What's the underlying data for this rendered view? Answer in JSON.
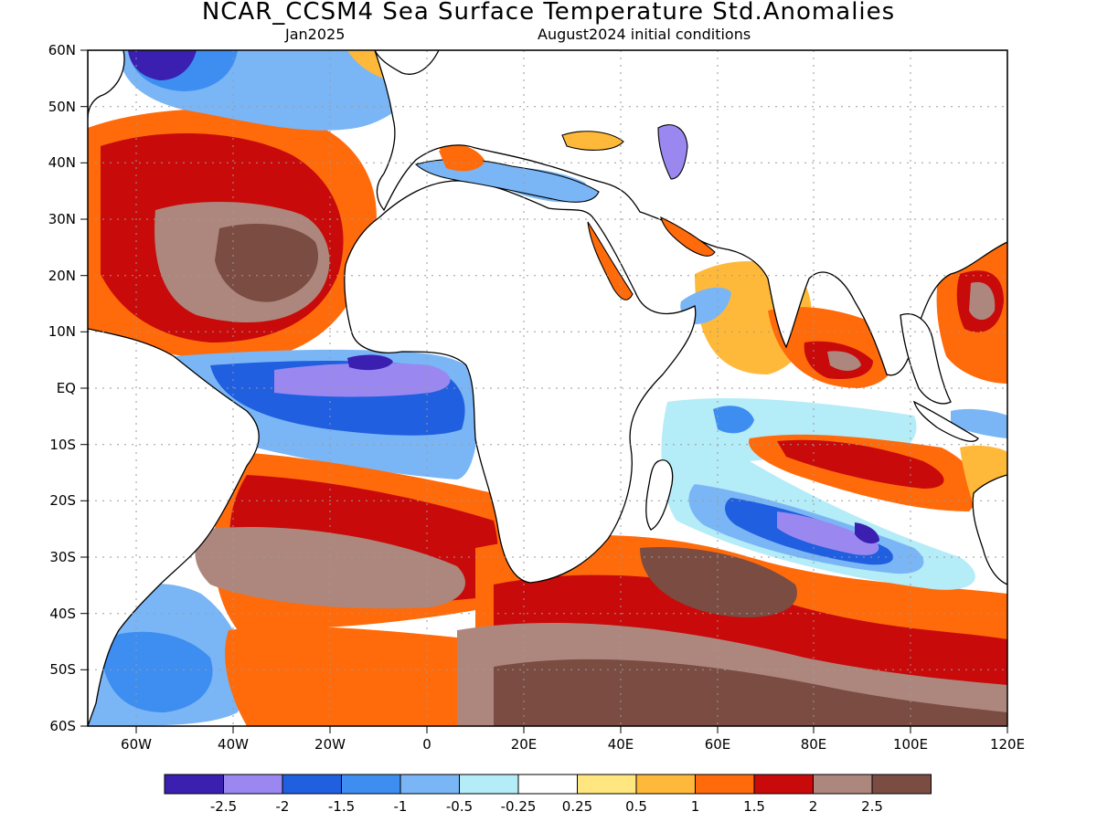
{
  "header": {
    "title": "NCAR_CCSM4 Sea Surface Temperature Std.Anomalies",
    "valid_month": "Jan2025",
    "init_conditions": "August2024 initial conditions"
  },
  "map": {
    "lon_range": [
      -70,
      120
    ],
    "lat_range": [
      -60,
      60
    ],
    "gridlines": "dotted",
    "coastlines": true,
    "lat_ticks": [
      "60N",
      "50N",
      "40N",
      "30N",
      "20N",
      "10N",
      "EQ",
      "10S",
      "20S",
      "30S",
      "40S",
      "50S",
      "60S"
    ],
    "lon_ticks": [
      "60W",
      "40W",
      "20W",
      "0",
      "20E",
      "40E",
      "60E",
      "80E",
      "100E",
      "120E"
    ]
  },
  "colorbar": {
    "colors": [
      "#3a1fb0",
      "#9a88f0",
      "#1f5fe0",
      "#3d8ef0",
      "#7ab6f5",
      "#b4ecf8",
      "#ffffff",
      "#ffe680",
      "#ffb93a",
      "#ff6a0a",
      "#c80a0a",
      "#ad877d",
      "#7a4c42"
    ],
    "labels": [
      "-2.5",
      "-2",
      "-1.5",
      "-1",
      "-0.5",
      "-0.25",
      "0.25",
      "0.5",
      "1",
      "1.5",
      "2",
      "2.5"
    ]
  }
}
